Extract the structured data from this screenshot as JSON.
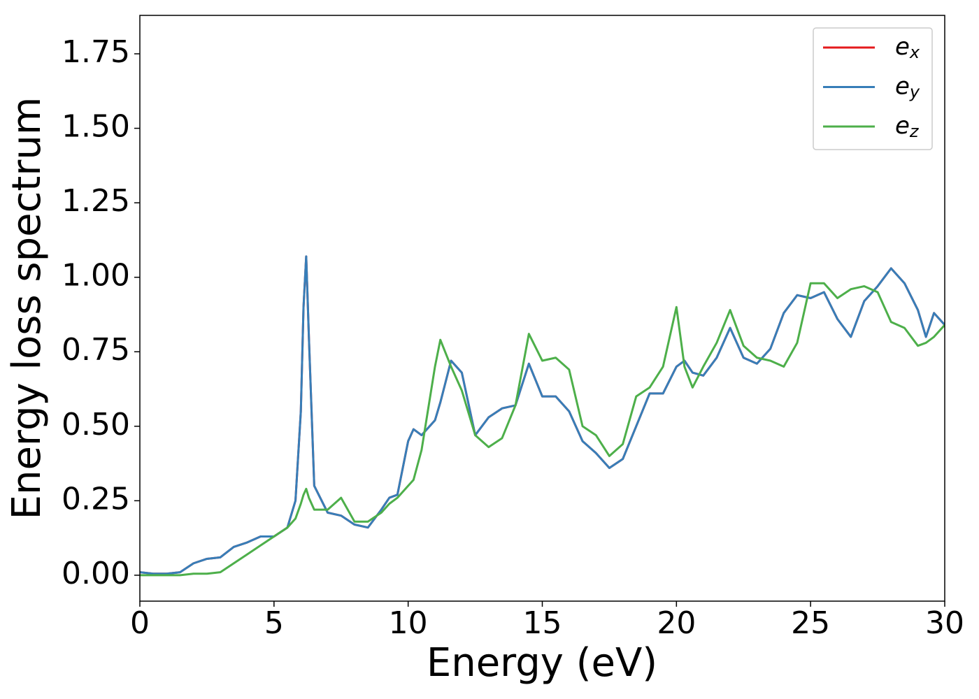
{
  "chart_data": {
    "type": "line",
    "xlabel": "Energy (eV)",
    "ylabel": "Energy loss spectrum",
    "x": [
      0,
      0.5,
      1,
      1.5,
      2,
      2.5,
      3,
      3.5,
      4,
      4.5,
      5,
      5.5,
      5.8,
      6,
      6.1,
      6.2,
      6.3,
      6.5,
      7,
      7.5,
      8,
      8.5,
      9,
      9.3,
      9.6,
      10,
      10.2,
      10.5,
      11,
      11.2,
      11.6,
      12,
      12.5,
      13,
      13.5,
      14,
      14.5,
      15,
      15.5,
      16,
      16.5,
      17,
      17.5,
      18,
      18.5,
      19,
      19.5,
      20,
      20.3,
      20.6,
      21,
      21.5,
      22,
      22.5,
      23,
      23.5,
      24,
      24.5,
      25,
      25.5,
      26,
      26.5,
      27,
      27.5,
      28,
      28.5,
      29,
      29.3,
      29.6,
      30
    ],
    "series": [
      {
        "name": "ex",
        "color": "#e41a1c",
        "values": [
          0.01,
          0.005,
          0.005,
          0.01,
          0.04,
          0.055,
          0.06,
          0.095,
          0.11,
          0.13,
          0.13,
          0.16,
          0.25,
          0.55,
          0.9,
          1.07,
          0.8,
          0.3,
          0.21,
          0.2,
          0.17,
          0.16,
          0.22,
          0.26,
          0.27,
          0.45,
          0.49,
          0.47,
          0.52,
          0.58,
          0.72,
          0.68,
          0.47,
          0.53,
          0.56,
          0.57,
          0.71,
          0.6,
          0.6,
          0.55,
          0.45,
          0.41,
          0.36,
          0.39,
          0.5,
          0.61,
          0.61,
          0.7,
          0.72,
          0.68,
          0.67,
          0.73,
          0.83,
          0.73,
          0.71,
          0.76,
          0.88,
          0.94,
          0.93,
          0.95,
          0.86,
          0.8,
          0.92,
          0.97,
          1.03,
          0.98,
          0.89,
          0.8,
          0.88,
          0.84
        ]
      },
      {
        "name": "ey",
        "color": "#377eb8",
        "values": [
          0.01,
          0.005,
          0.005,
          0.01,
          0.04,
          0.055,
          0.06,
          0.095,
          0.11,
          0.13,
          0.13,
          0.16,
          0.25,
          0.55,
          0.9,
          1.07,
          0.8,
          0.3,
          0.21,
          0.2,
          0.17,
          0.16,
          0.22,
          0.26,
          0.27,
          0.45,
          0.49,
          0.47,
          0.52,
          0.58,
          0.72,
          0.68,
          0.47,
          0.53,
          0.56,
          0.57,
          0.71,
          0.6,
          0.6,
          0.55,
          0.45,
          0.41,
          0.36,
          0.39,
          0.5,
          0.61,
          0.61,
          0.7,
          0.72,
          0.68,
          0.67,
          0.73,
          0.83,
          0.73,
          0.71,
          0.76,
          0.88,
          0.94,
          0.93,
          0.95,
          0.86,
          0.8,
          0.92,
          0.97,
          1.03,
          0.98,
          0.89,
          0.8,
          0.88,
          0.84
        ]
      },
      {
        "name": "ez",
        "color": "#4daf4a",
        "values": [
          0,
          0,
          0,
          0,
          0.005,
          0.005,
          0.01,
          0.04,
          0.07,
          0.1,
          0.13,
          0.16,
          0.19,
          0.24,
          0.27,
          0.29,
          0.26,
          0.22,
          0.22,
          0.26,
          0.18,
          0.18,
          0.21,
          0.24,
          0.26,
          0.3,
          0.32,
          0.42,
          0.7,
          0.79,
          0.7,
          0.62,
          0.47,
          0.43,
          0.46,
          0.57,
          0.81,
          0.72,
          0.73,
          0.69,
          0.5,
          0.47,
          0.4,
          0.44,
          0.6,
          0.63,
          0.7,
          0.9,
          0.7,
          0.63,
          0.7,
          0.78,
          0.89,
          0.77,
          0.73,
          0.72,
          0.7,
          0.78,
          0.98,
          0.98,
          0.93,
          0.96,
          0.97,
          0.95,
          0.85,
          0.83,
          0.77,
          0.78,
          0.8,
          0.84
        ]
      }
    ],
    "xlim": [
      0,
      30
    ],
    "xticks": [
      0,
      5,
      10,
      15,
      20,
      25,
      30
    ],
    "ylim": [
      -0.087,
      1.879
    ],
    "yticks": [
      {
        "value": 0,
        "label": "0.00"
      },
      {
        "value": 0.25,
        "label": "0.25"
      },
      {
        "value": 0.5,
        "label": "0.50"
      },
      {
        "value": 0.75,
        "label": "0.75"
      },
      {
        "value": 1,
        "label": "1.00"
      },
      {
        "value": 1.25,
        "label": "1.25"
      },
      {
        "value": 1.5,
        "label": "1.50"
      },
      {
        "value": 1.75,
        "label": "1.75"
      }
    ],
    "legend": "upper right"
  }
}
